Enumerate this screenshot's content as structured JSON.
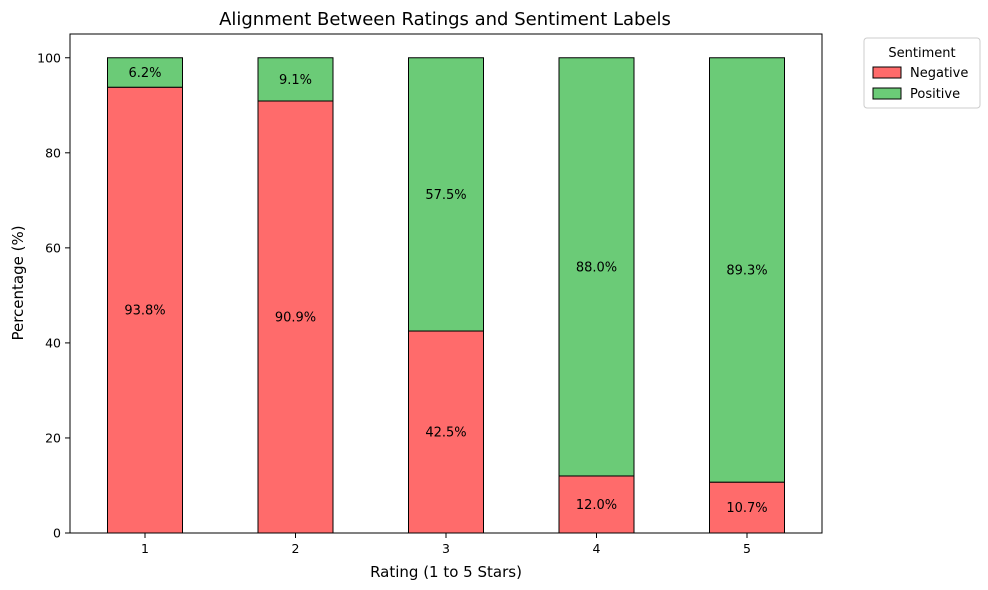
{
  "chart_data": {
    "type": "bar",
    "stacked": true,
    "title": "Alignment Between Ratings and Sentiment Labels",
    "xlabel": "Rating (1 to 5 Stars)",
    "ylabel": "Percentage (%)",
    "categories": [
      "1",
      "2",
      "3",
      "4",
      "5"
    ],
    "ylim": [
      0,
      105
    ],
    "yticks": [
      0,
      20,
      40,
      60,
      80,
      100
    ],
    "series": [
      {
        "name": "Negative",
        "color": "#ff6b6b",
        "values": [
          93.8,
          90.9,
          42.5,
          12.0,
          10.7
        ],
        "labels": [
          "93.8%",
          "90.9%",
          "42.5%",
          "12.0%",
          "10.7%"
        ]
      },
      {
        "name": "Positive",
        "color": "#6bcb77",
        "values": [
          6.2,
          9.1,
          57.5,
          88.0,
          89.3
        ],
        "labels": [
          "6.2%",
          "9.1%",
          "57.5%",
          "88.0%",
          "89.3%"
        ]
      }
    ],
    "legend": {
      "title": "Sentiment",
      "placement": "outside-top-right"
    },
    "grid": false
  }
}
